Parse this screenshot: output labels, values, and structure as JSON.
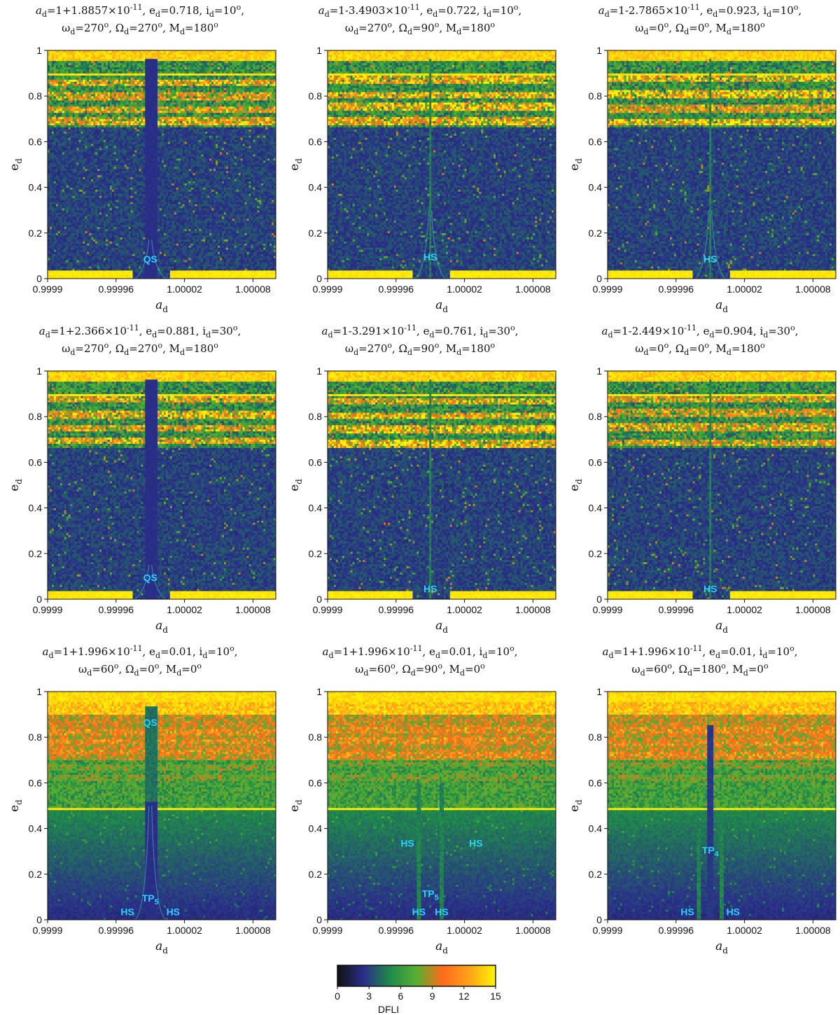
{
  "chart_data": [
    {
      "type": "heatmap",
      "title_line1": "a_d=1+1.8857×10^-11, e_d=0.718, i_d=10°,",
      "title_line2": "ω_d=270°, Ω_d=270°, M_d=180°",
      "xlabel": "a_d",
      "ylabel": "e_d",
      "xlim": [
        0.9999,
        1.0001
      ],
      "ylim": [
        0,
        1
      ],
      "xticks": [
        "0.9999",
        "0.99996",
        "1.00002",
        "1.00008"
      ],
      "yticks": [
        "0",
        "0.2",
        "0.4",
        "0.6",
        "0.8",
        "1"
      ],
      "structures": [
        {
          "kind": "qs_band",
          "x_from": 0.999985,
          "x_to": 0.999997,
          "e_to": 0.96
        },
        {
          "kind": "v_mouth",
          "x": 0.99999,
          "e_from": 0.0,
          "e_to": 0.17
        }
      ],
      "annotations": [
        {
          "text": "QS",
          "x": 0.99999,
          "y": 0.07
        }
      ]
    },
    {
      "type": "heatmap",
      "title_line1": "a_d=1-3.4903×10^-11, e_d=0.722, i_d=10°,",
      "title_line2": "ω_d=270°, Ω_d=90°, M_d=180°",
      "xlabel": "a_d",
      "ylabel": "e_d",
      "xlim": [
        0.9999,
        1.0001
      ],
      "ylim": [
        0,
        1
      ],
      "xticks": [
        "0.9999",
        "0.99996",
        "1.00002",
        "1.00008"
      ],
      "yticks": [
        "0",
        "0.2",
        "0.4",
        "0.6",
        "0.8",
        "1"
      ],
      "structures": [
        {
          "kind": "hs_line",
          "x": 0.99999,
          "e_to": 0.96
        },
        {
          "kind": "v_mouth",
          "x": 0.99999,
          "e_from": 0.0,
          "e_to": 0.3
        }
      ],
      "annotations": [
        {
          "text": "HS",
          "x": 0.99999,
          "y": 0.08
        }
      ]
    },
    {
      "type": "heatmap",
      "title_line1": "a_d=1-2.7865×10^-11, e_d=0.923, i_d=10°,",
      "title_line2": "ω_d=0°, Ω_d=0°, M_d=180°",
      "xlabel": "a_d",
      "ylabel": "e_d",
      "xlim": [
        0.9999,
        1.0001
      ],
      "ylim": [
        0,
        1
      ],
      "xticks": [
        "0.9999",
        "0.99996",
        "1.00002",
        "1.00008"
      ],
      "yticks": [
        "0",
        "0.2",
        "0.4",
        "0.6",
        "0.8",
        "1"
      ],
      "structures": [
        {
          "kind": "hs_line",
          "x": 0.99999,
          "e_to": 0.96
        },
        {
          "kind": "v_mouth",
          "x": 0.99999,
          "e_from": 0.0,
          "e_to": 0.3
        }
      ],
      "annotations": [
        {
          "text": "HS",
          "x": 0.99999,
          "y": 0.07
        }
      ]
    },
    {
      "type": "heatmap",
      "title_line1": "a_d=1+2.366×10^-11, e_d=0.881, i_d=30°,",
      "title_line2": "ω_d=270°, Ω_d=270°, M_d=180°",
      "xlabel": "a_d",
      "ylabel": "e_d",
      "xlim": [
        0.9999,
        1.0001
      ],
      "ylim": [
        0,
        1
      ],
      "xticks": [
        "0.9999",
        "0.99996",
        "1.00002",
        "1.00008"
      ],
      "yticks": [
        "0",
        "0.2",
        "0.4",
        "0.6",
        "0.8",
        "1"
      ],
      "structures": [
        {
          "kind": "qs_band",
          "x_from": 0.999985,
          "x_to": 0.999997,
          "e_to": 0.96
        },
        {
          "kind": "v_mouth",
          "x": 0.99999,
          "e_from": 0.0,
          "e_to": 0.15
        }
      ],
      "annotations": [
        {
          "text": "QS",
          "x": 0.99999,
          "y": 0.08
        }
      ]
    },
    {
      "type": "heatmap",
      "title_line1": "a_d=1-3.291×10^-11, e_d=0.761, i_d=30°,",
      "title_line2": "ω_d=270°, Ω_d=90°, M_d=180°",
      "xlabel": "a_d",
      "ylabel": "e_d",
      "xlim": [
        0.9999,
        1.0001
      ],
      "ylim": [
        0,
        1
      ],
      "xticks": [
        "0.9999",
        "0.99996",
        "1.00002",
        "1.00008"
      ],
      "yticks": [
        "0",
        "0.2",
        "0.4",
        "0.6",
        "0.8",
        "1"
      ],
      "structures": [
        {
          "kind": "hs_line",
          "x": 0.99999,
          "e_to": 0.96
        }
      ],
      "annotations": [
        {
          "text": "HS",
          "x": 0.99999,
          "y": 0.03
        }
      ]
    },
    {
      "type": "heatmap",
      "title_line1": "a_d=1-2.449×10^-11, e_d=0.904, i_d=30°,",
      "title_line2": "ω_d=0°, Ω_d=0°, M_d=180°",
      "xlabel": "a_d",
      "ylabel": "e_d",
      "xlim": [
        0.9999,
        1.0001
      ],
      "ylim": [
        0,
        1
      ],
      "xticks": [
        "0.9999",
        "0.99996",
        "1.00002",
        "1.00008"
      ],
      "yticks": [
        "0",
        "0.2",
        "0.4",
        "0.6",
        "0.8",
        "1"
      ],
      "structures": [
        {
          "kind": "hs_line",
          "x": 0.99999,
          "e_to": 0.96
        }
      ],
      "annotations": [
        {
          "text": "HS",
          "x": 0.99999,
          "y": 0.03
        }
      ]
    },
    {
      "type": "heatmap",
      "title_line1": "a_d=1+1.996×10^-11, e_d=0.01, i_d=10°,",
      "title_line2": "ω_d=60°, Ω_d=0°, M_d=0°",
      "xlabel": "a_d",
      "ylabel": "e_d",
      "xlim": [
        0.9999,
        1.0001
      ],
      "ylim": [
        0,
        1
      ],
      "xticks": [
        "0.9999",
        "0.99996",
        "1.00002",
        "1.00008"
      ],
      "yticks": [
        "0",
        "0.2",
        "0.4",
        "0.6",
        "0.8",
        "1"
      ],
      "structures": [
        {
          "kind": "qs_band",
          "x_from": 0.999985,
          "x_to": 0.999997,
          "e_to": 0.94
        },
        {
          "kind": "v_mouth",
          "x": 0.99999,
          "e_from": 0.0,
          "e_to": 0.5
        }
      ],
      "annotations": [
        {
          "text": "QS",
          "x": 0.99999,
          "y": 0.85
        },
        {
          "text": "TP",
          "sub": "5",
          "x": 0.99999,
          "y": 0.08
        },
        {
          "text": "HS",
          "x": 0.99997,
          "y": 0.02
        },
        {
          "text": "HS",
          "x": 1.00001,
          "y": 0.02
        }
      ]
    },
    {
      "type": "heatmap",
      "title_line1": "a_d=1+1.996×10^-11, e_d=0.01, i_d=10°,",
      "title_line2": "ω_d=60°, Ω_d=90°, M_d=0°",
      "xlabel": "a_d",
      "ylabel": "e_d",
      "xlim": [
        0.9999,
        1.0001
      ],
      "ylim": [
        0,
        1
      ],
      "xticks": [
        "0.9999",
        "0.99996",
        "1.00002",
        "1.00008"
      ],
      "yticks": [
        "0",
        "0.2",
        "0.4",
        "0.6",
        "0.8",
        "1"
      ],
      "structures": [
        {
          "kind": "hs_line",
          "x": 0.99998,
          "e_to": 0.6
        },
        {
          "kind": "hs_line",
          "x": 1.0,
          "e_to": 0.6
        }
      ],
      "annotations": [
        {
          "text": "HS",
          "x": 0.99997,
          "y": 0.32
        },
        {
          "text": "HS",
          "x": 1.00003,
          "y": 0.32
        },
        {
          "text": "TP",
          "sub": "5",
          "x": 0.99999,
          "y": 0.1
        },
        {
          "text": "HS",
          "x": 0.99998,
          "y": 0.02
        },
        {
          "text": "HS",
          "x": 1.0,
          "y": 0.02
        }
      ]
    },
    {
      "type": "heatmap",
      "title_line1": "a_d=1+1.996×10^-11, e_d=0.01, i_d=10°,",
      "title_line2": "ω_d=60°, Ω_d=180°, M_d=0°",
      "xlabel": "a_d",
      "ylabel": "e_d",
      "xlim": [
        0.9999,
        1.0001
      ],
      "ylim": [
        0,
        1
      ],
      "xticks": [
        "0.9999",
        "0.99996",
        "1.00002",
        "1.00008"
      ],
      "yticks": [
        "0",
        "0.2",
        "0.4",
        "0.6",
        "0.8",
        "1"
      ],
      "structures": [
        {
          "kind": "tp_band",
          "x_from": 0.999987,
          "x_to": 0.999993,
          "e_to": 0.85
        },
        {
          "kind": "hs_line",
          "x": 0.99998,
          "e_to": 0.4
        },
        {
          "kind": "hs_line",
          "x": 1.0,
          "e_to": 0.4
        }
      ],
      "annotations": [
        {
          "text": "TP",
          "sub": "4",
          "x": 0.99999,
          "y": 0.29
        },
        {
          "text": "HS",
          "x": 0.99997,
          "y": 0.02
        },
        {
          "text": "HS",
          "x": 1.00001,
          "y": 0.02
        }
      ]
    }
  ],
  "colorbar": {
    "label": "DFLI",
    "ticks": [
      "0",
      "3",
      "6",
      "9",
      "12",
      "15"
    ],
    "range": [
      0,
      15
    ],
    "colors": [
      "#111111",
      "#2a2e8a",
      "#1f8a4a",
      "#56b030",
      "#ff6a1a",
      "#ffa21a",
      "#fff400"
    ]
  }
}
